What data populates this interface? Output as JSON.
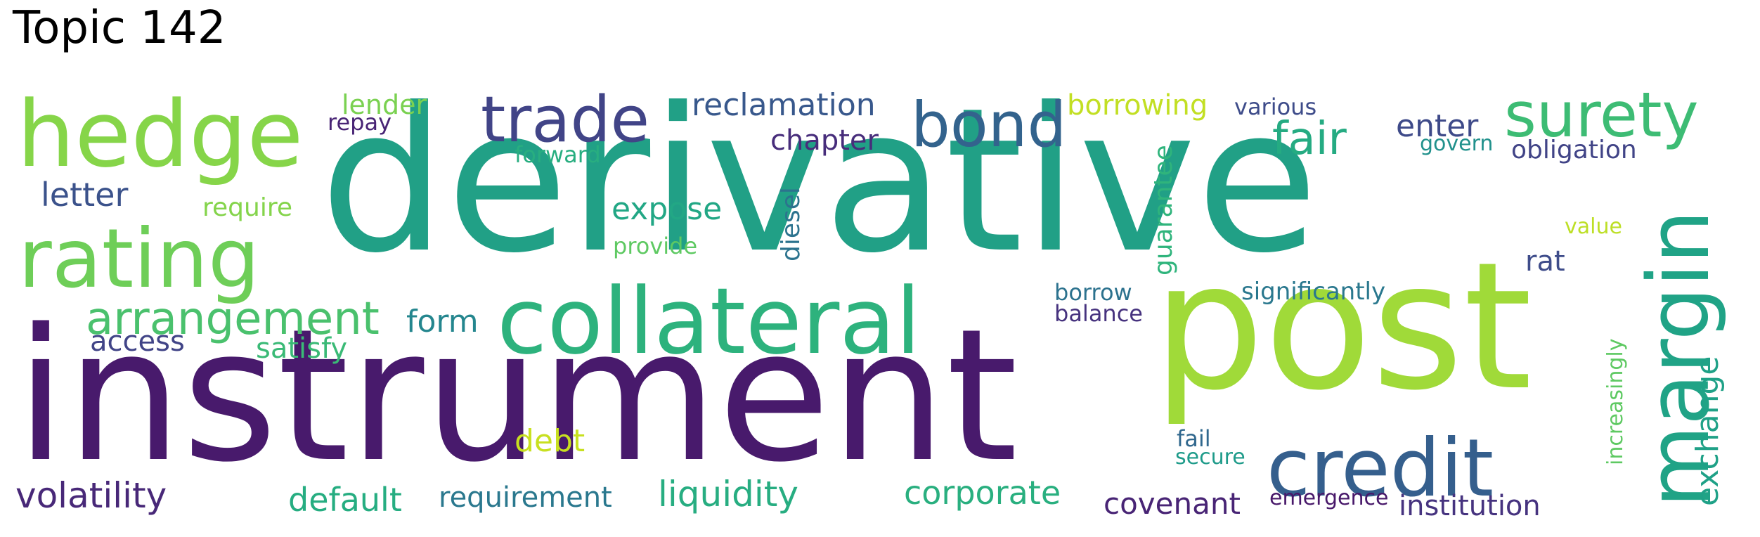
{
  "title": "Topic 142",
  "words": {
    "derivative": {
      "text": "derivative",
      "color": "#21a086"
    },
    "instrument": {
      "text": "instrument",
      "color": "#481a6c"
    },
    "post": {
      "text": "post",
      "color": "#a0da39"
    },
    "collateral": {
      "text": "collateral",
      "color": "#2db27d"
    },
    "hedge": {
      "text": "hedge",
      "color": "#86d549"
    },
    "rating": {
      "text": "rating",
      "color": "#6ece58"
    },
    "margin": {
      "text": "margin",
      "color": "#20a386"
    },
    "credit": {
      "text": "credit",
      "color": "#355f8d"
    },
    "trade": {
      "text": "trade",
      "color": "#414487"
    },
    "surety": {
      "text": "surety",
      "color": "#3dbc74"
    },
    "bond": {
      "text": "bond",
      "color": "#33638d"
    },
    "arrangement": {
      "text": "arrangement",
      "color": "#4ac16d"
    },
    "fair": {
      "text": "fair",
      "color": "#25ab82"
    },
    "reclamation": {
      "text": "reclamation",
      "color": "#38588c"
    },
    "volatility": {
      "text": "volatility",
      "color": "#482878"
    },
    "liquidity": {
      "text": "liquidity",
      "color": "#27ad81"
    },
    "corporate": {
      "text": "corporate",
      "color": "#29af7f"
    },
    "default": {
      "text": "default",
      "color": "#26ad81"
    },
    "requirement": {
      "text": "requirement",
      "color": "#2a788e"
    },
    "covenant": {
      "text": "covenant",
      "color": "#482475"
    },
    "institution": {
      "text": "institution",
      "color": "#46337f"
    },
    "exchange": {
      "text": "exchange",
      "color": "#1fa187"
    },
    "letter": {
      "text": "letter",
      "color": "#3b528b"
    },
    "expose": {
      "text": "expose",
      "color": "#22a785"
    },
    "chapter": {
      "text": "chapter",
      "color": "#472d7b"
    },
    "access": {
      "text": "access",
      "color": "#414487"
    },
    "form": {
      "text": "form",
      "color": "#24868e"
    },
    "satisfy": {
      "text": "satisfy",
      "color": "#3aba76"
    },
    "enter": {
      "text": "enter",
      "color": "#3e4a89"
    },
    "obligation": {
      "text": "obligation",
      "color": "#414487"
    },
    "rat": {
      "text": "rat",
      "color": "#3e4c8a"
    },
    "debt": {
      "text": "debt",
      "color": "#c8e020"
    },
    "borrowing": {
      "text": "borrowing",
      "color": "#c2df23"
    },
    "lender": {
      "text": "lender",
      "color": "#7ad151"
    },
    "diesel": {
      "text": "diesel",
      "color": "#2c738e"
    },
    "guarantee": {
      "text": "guarantee",
      "color": "#2fb47c"
    },
    "require": {
      "text": "require",
      "color": "#84d44b"
    },
    "significantly": {
      "text": "significantly",
      "color": "#2a788e"
    },
    "balance": {
      "text": "balance",
      "color": "#46327e"
    },
    "borrow": {
      "text": "borrow",
      "color": "#2c728e"
    },
    "various": {
      "text": "various",
      "color": "#3e4c8a"
    },
    "repay": {
      "text": "repay",
      "color": "#482475"
    },
    "forward": {
      "text": "forward",
      "color": "#28ae80"
    },
    "provide": {
      "text": "provide",
      "color": "#5ec962"
    },
    "govern": {
      "text": "govern",
      "color": "#21918c"
    },
    "value": {
      "text": "value",
      "color": "#bddf26"
    },
    "fail": {
      "text": "fail",
      "color": "#31688e"
    },
    "secure": {
      "text": "secure",
      "color": "#1e9b8a"
    },
    "emergence": {
      "text": "emergence",
      "color": "#48186a"
    },
    "increasingly": {
      "text": "increasingly",
      "color": "#5ec962"
    }
  }
}
